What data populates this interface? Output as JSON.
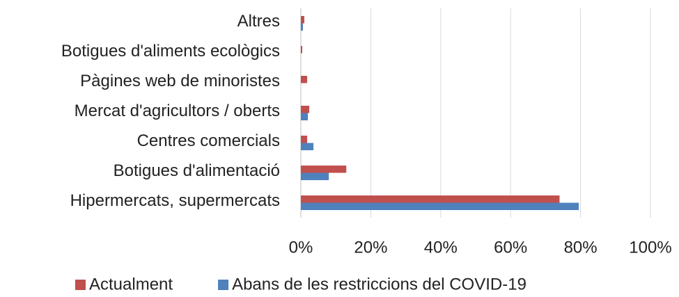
{
  "chart_data": {
    "type": "bar",
    "orientation": "horizontal",
    "categories": [
      "Altres",
      "Botigues d'aliments ecològics",
      "Pàgines web de minoristes",
      "Mercat d'agricultors / oberts",
      "Centres comercials",
      "Botigues d'alimentació",
      "Hipermercats, supermercats"
    ],
    "series": [
      {
        "name": "Actualment",
        "color": "#c0504d",
        "values": [
          1,
          0.4,
          1.8,
          2.4,
          1.8,
          13,
          74
        ]
      },
      {
        "name": "Abans de les restriccions del COVID-19",
        "color": "#4f81bd",
        "values": [
          0.6,
          0,
          0,
          2,
          3.6,
          8,
          79.5
        ]
      }
    ],
    "xlim": [
      0,
      100
    ],
    "xticks": [
      {
        "value": 0,
        "label": "0%"
      },
      {
        "value": 20,
        "label": "20%"
      },
      {
        "value": 40,
        "label": "40%"
      },
      {
        "value": 60,
        "label": "60%"
      },
      {
        "value": 80,
        "label": "80%"
      },
      {
        "value": 100,
        "label": "100%"
      }
    ],
    "grid": true,
    "legend": "bottom"
  }
}
